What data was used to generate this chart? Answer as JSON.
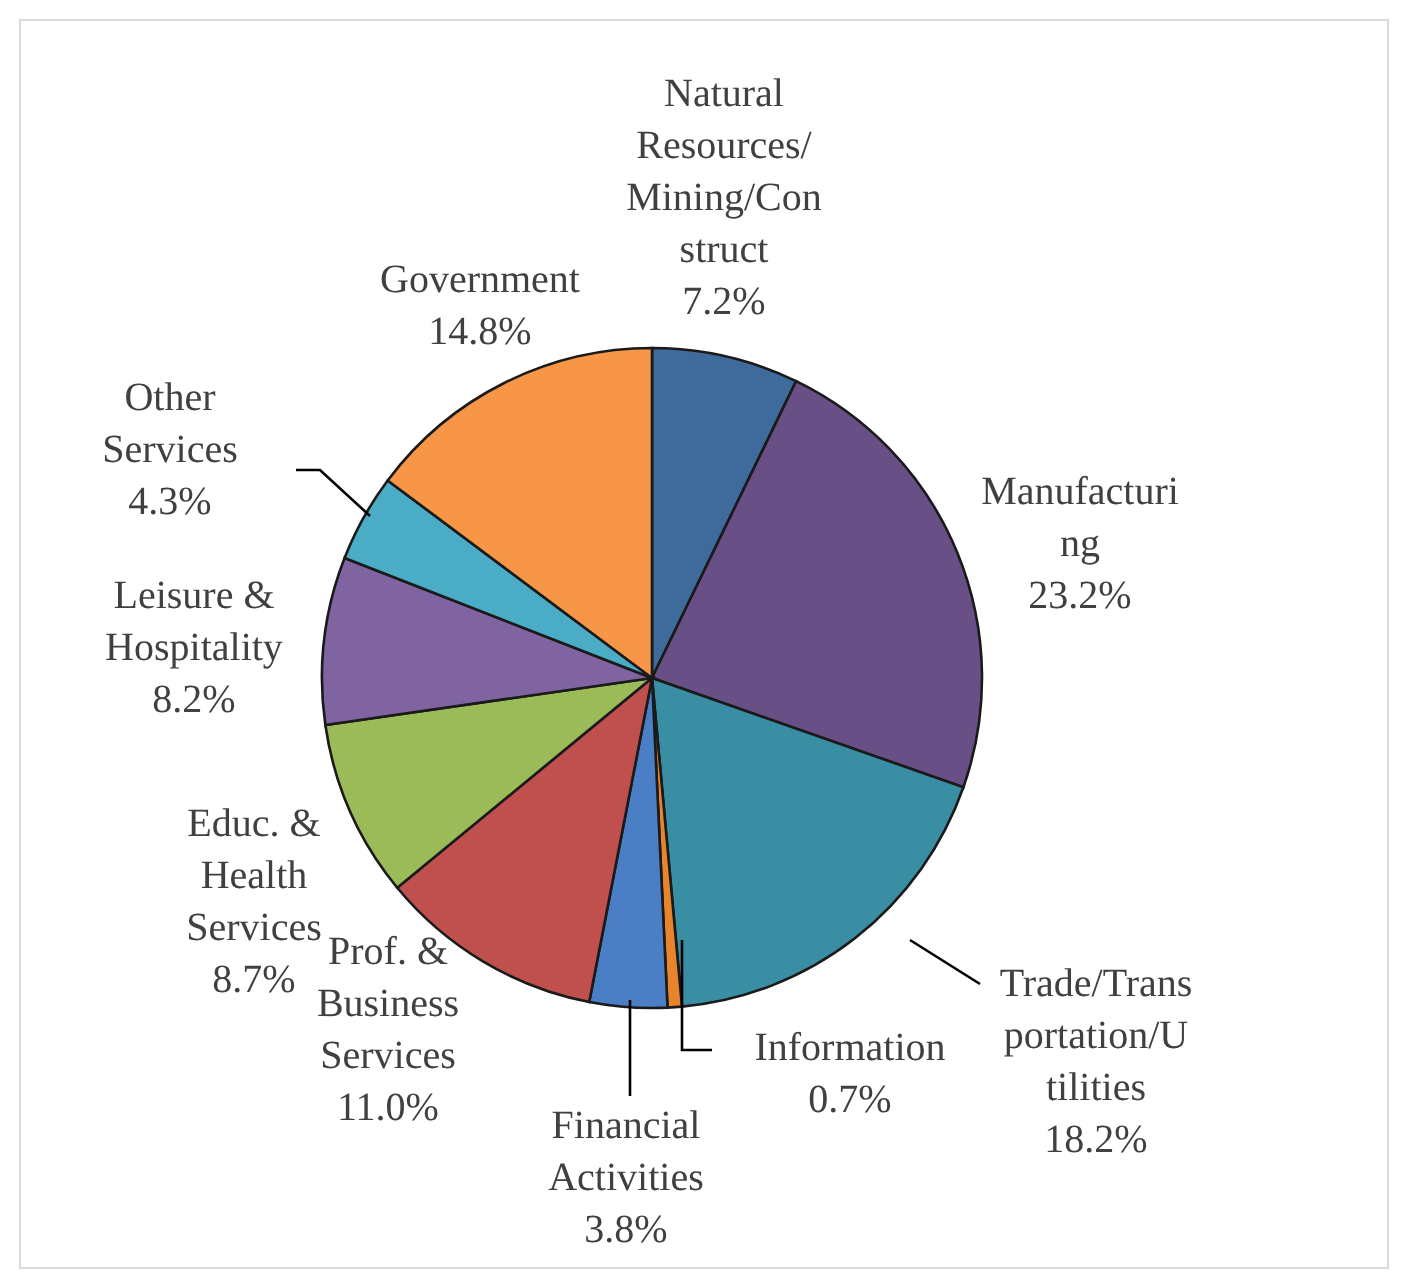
{
  "chart_data": {
    "type": "pie",
    "categories": [
      "Natural Resources/Mining/Construct",
      "Manufacturing",
      "Trade/Transportation/Utilities",
      "Information",
      "Financial Activities",
      "Prof. & Business Services",
      "Educ. & Health Services",
      "Leisure & Hospitality",
      "Other Services",
      "Government"
    ],
    "values": [
      7.2,
      23.2,
      18.2,
      0.7,
      3.8,
      11.0,
      8.7,
      8.2,
      4.3,
      14.8
    ],
    "value_labels": [
      "7.2%",
      "23.2%",
      "18.2%",
      "0.7%",
      "3.8%",
      "11.0%",
      "8.7%",
      "8.2%",
      "4.3%",
      "14.8%"
    ],
    "colors": [
      "#3f6a9c",
      "#684f86",
      "#3a8ea4",
      "#e8852c",
      "#4a7fc6",
      "#c0504d",
      "#9bbb59",
      "#8064a2",
      "#4bacc6",
      "#f79646"
    ]
  }
}
